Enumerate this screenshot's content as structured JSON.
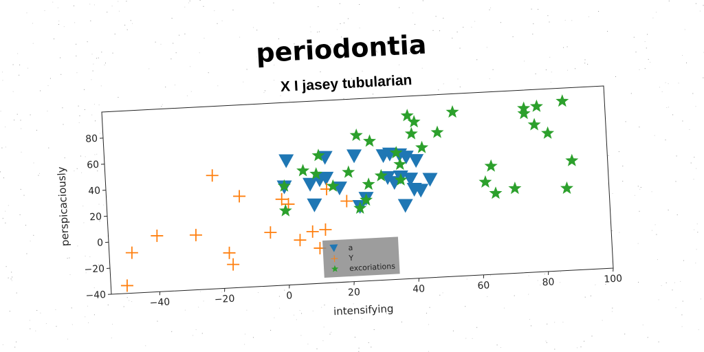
{
  "chart_data": {
    "type": "scatter",
    "title": "periodontia",
    "subtitle": "X I jasey tubularian",
    "xlabel": "intensifying",
    "ylabel": "perspicaciously",
    "xlim": [
      -55,
      100
    ],
    "ylim": [
      -40,
      100
    ],
    "xticks": [
      -40,
      -20,
      0,
      20,
      40,
      60,
      80,
      100
    ],
    "yticks": [
      -40,
      -20,
      0,
      20,
      40,
      60,
      80
    ],
    "grid": false,
    "legend_placement": "lower-center",
    "series": [
      {
        "name": "a",
        "marker": "triangle-down",
        "color": "#1f77b4",
        "points": [
          [
            1,
            55
          ],
          [
            13,
            56
          ],
          [
            22,
            56
          ],
          [
            31,
            55
          ],
          [
            33,
            56
          ],
          [
            36,
            55
          ],
          [
            38,
            53
          ],
          [
            41,
            50
          ],
          [
            0,
            35
          ],
          [
            8,
            36
          ],
          [
            11,
            39
          ],
          [
            13,
            40
          ],
          [
            17,
            32
          ],
          [
            25,
            23
          ],
          [
            32,
            38
          ],
          [
            34,
            34
          ],
          [
            36,
            38
          ],
          [
            39,
            36
          ],
          [
            45,
            35
          ],
          [
            9,
            20
          ],
          [
            23,
            17
          ],
          [
            37,
            16
          ],
          [
            40,
            28
          ],
          [
            42,
            27
          ]
        ]
      },
      {
        "name": "Y",
        "marker": "plus",
        "color": "#ff7f0e",
        "points": [
          [
            -22,
            47
          ],
          [
            -14,
            30
          ],
          [
            -1,
            26
          ],
          [
            1,
            22
          ],
          [
            13,
            32
          ],
          [
            19,
            22
          ],
          [
            -40,
            3
          ],
          [
            -28,
            2
          ],
          [
            -5,
            1
          ],
          [
            8,
            0
          ],
          [
            12,
            1
          ],
          [
            4,
            -6
          ],
          [
            -48,
            -9
          ],
          [
            -18,
            -13
          ],
          [
            -17,
            -22
          ],
          [
            -50,
            -34
          ],
          [
            10,
            -13
          ]
        ]
      },
      {
        "name": "excoriations",
        "marker": "star",
        "color": "#2ca02c",
        "points": [
          [
            87,
            90
          ],
          [
            75,
            86
          ],
          [
            79,
            87
          ],
          [
            78,
            73
          ],
          [
            39,
            85
          ],
          [
            41,
            80
          ],
          [
            53,
            86
          ],
          [
            48,
            71
          ],
          [
            23,
            72
          ],
          [
            27,
            67
          ],
          [
            40,
            71
          ],
          [
            43,
            60
          ],
          [
            6,
            47
          ],
          [
            10,
            44
          ],
          [
            11,
            58
          ],
          [
            20,
            44
          ],
          [
            35,
            57
          ],
          [
            36,
            48
          ],
          [
            0,
            36
          ],
          [
            15,
            34
          ],
          [
            30,
            40
          ],
          [
            36,
            36
          ],
          [
            25,
            22
          ],
          [
            23,
            16
          ],
          [
            26,
            34
          ],
          [
            62,
            31
          ],
          [
            65,
            22
          ],
          [
            71,
            25
          ],
          [
            64,
            43
          ],
          [
            75,
            82
          ],
          [
            82,
            66
          ],
          [
            87,
            23
          ],
          [
            89,
            44
          ],
          [
            0,
            17
          ]
        ]
      }
    ]
  }
}
